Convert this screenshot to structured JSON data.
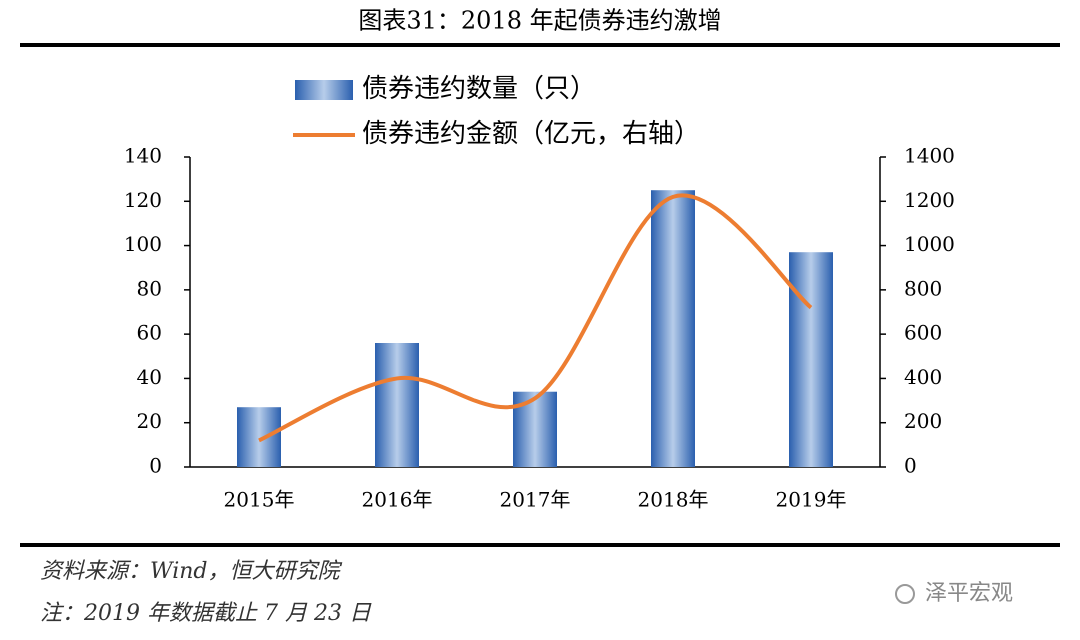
{
  "chart_data": {
    "type": "bar",
    "title": "图表31：2018 年起债券违约激增",
    "categories": [
      "2015年",
      "2016年",
      "2017年",
      "2018年",
      "2019年"
    ],
    "series": [
      {
        "name": "债券违约数量（只）",
        "type": "bar",
        "color": "#2e6bb8",
        "values": [
          27,
          56,
          34,
          125,
          97
        ]
      },
      {
        "name": "债券违约金额（亿元，右轴）",
        "type": "line",
        "axis": "y2",
        "color": "#ed7d31",
        "values": [
          120,
          400,
          310,
          1220,
          720
        ]
      }
    ],
    "ylim": [
      0,
      140
    ],
    "yticks": [
      0,
      20,
      40,
      60,
      80,
      100,
      120,
      140
    ],
    "y2lim": [
      0,
      1400
    ],
    "y2ticks": [
      0,
      200,
      400,
      600,
      800,
      1000,
      1200,
      1400
    ],
    "grid": false,
    "source": "资料来源：Wind，恒大研究院",
    "note": "注：2019 年数据截止 7 月 23 日",
    "watermark": "泽平宏观"
  }
}
